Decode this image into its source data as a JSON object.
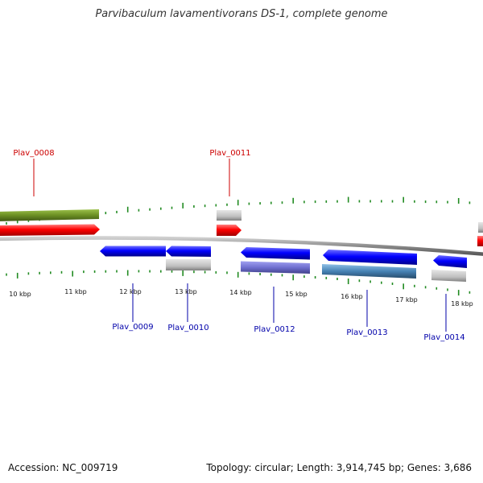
{
  "title": "Parvibaculum lavamentivorans DS-1, complete genome",
  "footer": {
    "accession": "Accession: NC_009719",
    "summary": "Topology: circular; Length: 3,914,745 bp; Genes: 3,686"
  },
  "scale": {
    "unit": "kbp",
    "labels": [
      "10 kbp",
      "11 kbp",
      "12 kbp",
      "13 kbp",
      "14 kbp",
      "15 kbp",
      "16 kbp",
      "17 kbp",
      "18 kbp"
    ]
  },
  "genes": [
    {
      "id": "Plav_0008",
      "strand": "+",
      "color": "#ff0000",
      "label_color": "#cc0000"
    },
    {
      "id": "Plav_0009",
      "strand": "-",
      "color": "#0000ff",
      "label_color": "#0000aa"
    },
    {
      "id": "Plav_0010",
      "strand": "-",
      "color": "#0000ff",
      "label_color": "#0000aa"
    },
    {
      "id": "Plav_0011",
      "strand": "+",
      "color": "#ff0000",
      "label_color": "#cc0000"
    },
    {
      "id": "Plav_0012",
      "strand": "-",
      "color": "#0000ff",
      "label_color": "#0000aa"
    },
    {
      "id": "Plav_0013",
      "strand": "-",
      "color": "#0000ff",
      "label_color": "#0000aa"
    },
    {
      "id": "Plav_0014",
      "strand": "-",
      "color": "#0000ff",
      "label_color": "#0000aa"
    }
  ],
  "colors": {
    "forward_cds": "#ff0000",
    "reverse_cds": "#0000ff",
    "gene_feature": "#6b8e23",
    "grey_feature": "#bfbfbf",
    "purple_feature": "#7070d0",
    "steel_feature": "#4682b4",
    "tick": "#228b22",
    "backbone": "#888888"
  }
}
